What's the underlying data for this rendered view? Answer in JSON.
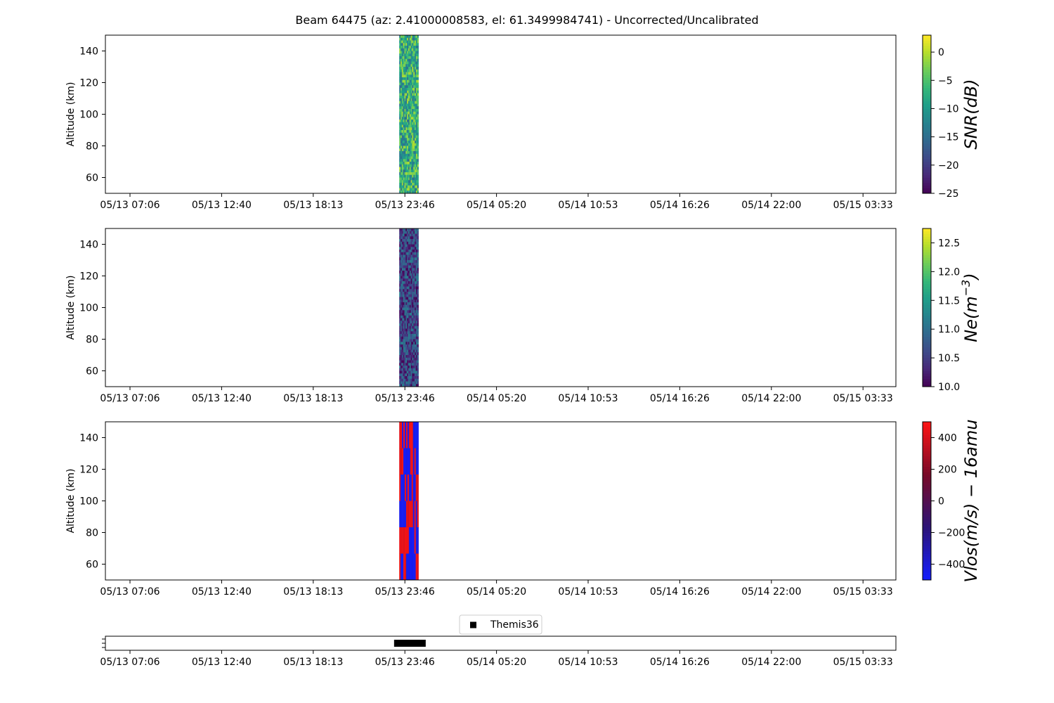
{
  "figure": {
    "title": "Beam 64475 (az: 2.41000008583, el: 61.3499984741) - Uncorrected/Uncalibrated",
    "x_tick_labels": [
      "05/13 07:06",
      "05/13 12:40",
      "05/13 18:13",
      "05/13 23:46",
      "05/14 05:20",
      "05/14 10:53",
      "05/14 16:26",
      "05/14 22:00",
      "05/15 03:33"
    ]
  },
  "chart_data": [
    {
      "type": "heatmap",
      "id": "snr",
      "ylabel": "Altitude (km)",
      "ylim": [
        50,
        150
      ],
      "y_ticks": [
        60,
        80,
        100,
        120,
        140
      ],
      "x_ticks": [
        "05/13 07:06",
        "05/13 12:40",
        "05/13 18:13",
        "05/13 23:46",
        "05/14 05:20",
        "05/14 10:53",
        "05/14 16:26",
        "05/14 22:00",
        "05/15 03:33"
      ],
      "data_time_range": [
        "05/13 23:26",
        "05/14 00:36"
      ],
      "colorbar": {
        "label": "SNR(dB)",
        "colormap": "viridis",
        "range": [
          -25,
          3
        ],
        "ticks": [
          0,
          -5,
          -10,
          -15,
          -20,
          -25
        ],
        "tick_labels": [
          "0",
          "−5",
          "−10",
          "−15",
          "−20",
          "−25"
        ]
      },
      "value_range_typical": [
        -15,
        0
      ]
    },
    {
      "type": "heatmap",
      "id": "ne",
      "ylabel": "Altitude (km)",
      "ylim": [
        50,
        150
      ],
      "y_ticks": [
        60,
        80,
        100,
        120,
        140
      ],
      "x_ticks": [
        "05/13 07:06",
        "05/13 12:40",
        "05/13 18:13",
        "05/13 23:46",
        "05/14 05:20",
        "05/14 10:53",
        "05/14 16:26",
        "05/14 22:00",
        "05/15 03:33"
      ],
      "data_time_range": [
        "05/13 23:26",
        "05/14 00:36"
      ],
      "colorbar": {
        "label_main": "Ne(m",
        "label_sup": "−3",
        "label_end": ")",
        "colormap": "viridis",
        "range": [
          10.0,
          12.75
        ],
        "ticks": [
          12.5,
          12.0,
          11.5,
          11.0,
          10.5,
          10.0
        ],
        "tick_labels": [
          "12.5",
          "12.0",
          "11.5",
          "11.0",
          "10.5",
          "10.0"
        ]
      },
      "value_range_typical": [
        10.0,
        11.2
      ]
    },
    {
      "type": "heatmap",
      "id": "vlos",
      "ylabel": "Altitude (km)",
      "ylim": [
        50,
        150
      ],
      "y_ticks": [
        60,
        80,
        100,
        120,
        140
      ],
      "x_ticks": [
        "05/13 07:06",
        "05/13 12:40",
        "05/13 18:13",
        "05/13 23:46",
        "05/14 05:20",
        "05/14 10:53",
        "05/14 16:26",
        "05/14 22:00",
        "05/15 03:33"
      ],
      "data_time_range": [
        "05/13 23:26",
        "05/14 00:36"
      ],
      "colorbar": {
        "label": "Vlos(m/s) − 16amu",
        "colormap": "blue-red",
        "range": [
          -500,
          500
        ],
        "ticks": [
          400,
          200,
          0,
          -200,
          -400
        ],
        "tick_labels": [
          "400",
          "200",
          "0",
          "−200",
          "−400"
        ]
      },
      "value_range_typical": [
        -500,
        500
      ]
    },
    {
      "type": "scatter",
      "id": "satellite",
      "x_ticks": [
        "05/13 07:06",
        "05/13 12:40",
        "05/13 18:13",
        "05/13 23:46",
        "05/14 05:20",
        "05/14 10:53",
        "05/14 16:26",
        "05/14 22:00",
        "05/15 03:33"
      ],
      "legend": {
        "entries": [
          "Themis36"
        ],
        "placement": "top-center"
      },
      "series": [
        {
          "name": "Themis36",
          "marker": "square",
          "color": "#000000",
          "x_range": [
            "05/13 23:20",
            "05/14 00:50"
          ]
        }
      ]
    }
  ],
  "colors": {
    "vlos_low": "#1c1cff",
    "vlos_high": "#ff1c1c",
    "marker": "#000000"
  }
}
